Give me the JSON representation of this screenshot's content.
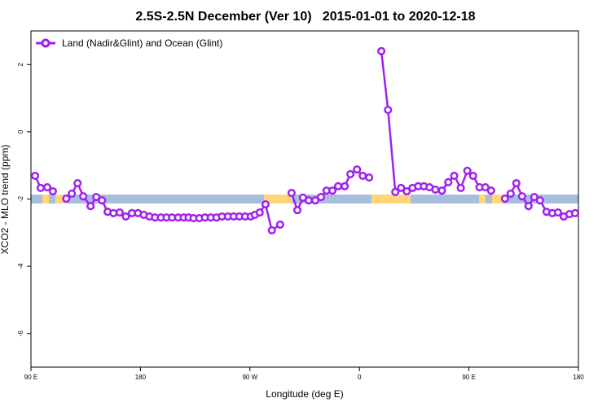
{
  "chart_data": {
    "type": "line",
    "title": "2.5S-2.5N December (Ver 10)   2015-01-01 to 2020-12-18",
    "x_label": "Longitude (deg E)",
    "y_label": "XCO2 - MLO trend (ppm)",
    "xlim": [
      90,
      540
    ],
    "ylim": [
      -7,
      3
    ],
    "xticks": [
      {
        "value": 90,
        "label": "90 E"
      },
      180,
      {
        "value": 270,
        "label": "90 W"
      },
      {
        "value": 360,
        "label": "0"
      },
      {
        "value": 450,
        "label": "90 E"
      },
      {
        "value": 540,
        "label": "180"
      }
    ],
    "yticks": [
      -6,
      -4,
      -2,
      0,
      2
    ],
    "legend": "top-left",
    "series": [
      {
        "name": "Land (Nadir&Glint) and Ocean (Glint)",
        "color": "#a020f0",
        "x": [
          93.4,
          98,
          103.4,
          108,
          null,
          119,
          123.6,
          128.3,
          133,
          139,
          143.7,
          148.4,
          153,
          157.8,
          163,
          168,
          173,
          178,
          182.7,
          187.4,
          192,
          196.8,
          201.5,
          206,
          211,
          215.6,
          219.6,
          223.6,
          228.4,
          233,
          237.8,
          242.5,
          247,
          251.9,
          256.6,
          261.3,
          266,
          270.7,
          274,
          278,
          282.8,
          288,
          294.8,
          null,
          304.2,
          309,
          313.6,
          318.3,
          323.7,
          328.4,
          333,
          337.8,
          342.5,
          347.9,
          352.6,
          358,
          362.7,
          368,
          null,
          378,
          383.5,
          389.5,
          394.2,
          398.9,
          403.6,
          408.3,
          413,
          417.6,
          422.4,
          427.8,
          433,
          437.9,
          443.3,
          448.7,
          453.4,
          458.7,
          463.5,
          468.2,
          null,
          479.6,
          484.3,
          489,
          493.7,
          499,
          503.7,
          508.4,
          513.8,
          518.5,
          523.2,
          527.9,
          532.6,
          537.3
        ],
        "values": [
          -1.31,
          -1.67,
          -1.65,
          -1.77,
          null,
          -1.99,
          -1.84,
          -1.53,
          -1.92,
          -2.21,
          -1.94,
          -2.04,
          -2.38,
          -2.42,
          -2.4,
          -2.52,
          -2.42,
          -2.42,
          -2.47,
          -2.52,
          -2.55,
          -2.55,
          -2.55,
          -2.55,
          -2.55,
          -2.55,
          -2.55,
          -2.57,
          -2.57,
          -2.55,
          -2.55,
          -2.55,
          -2.52,
          -2.52,
          -2.52,
          -2.52,
          -2.52,
          -2.52,
          -2.47,
          -2.4,
          -2.16,
          -2.93,
          -2.76,
          null,
          -1.82,
          -2.33,
          -1.96,
          -2.04,
          -2.04,
          -1.94,
          -1.75,
          -1.75,
          -1.62,
          -1.62,
          -1.26,
          -1.12,
          -1.31,
          -1.36,
          null,
          2.4,
          0.65,
          -1.79,
          -1.67,
          -1.77,
          -1.67,
          -1.62,
          -1.62,
          -1.65,
          -1.72,
          -1.75,
          -1.5,
          -1.31,
          -1.67,
          -1.16,
          -1.31,
          -1.65,
          -1.65,
          -1.75,
          null,
          -1.99,
          -1.84,
          -1.53,
          -1.92,
          -2.21,
          -1.94,
          -2.04,
          -2.38,
          -2.42,
          -2.4,
          -2.52,
          -2.45,
          -2.42
        ]
      }
    ]
  }
}
